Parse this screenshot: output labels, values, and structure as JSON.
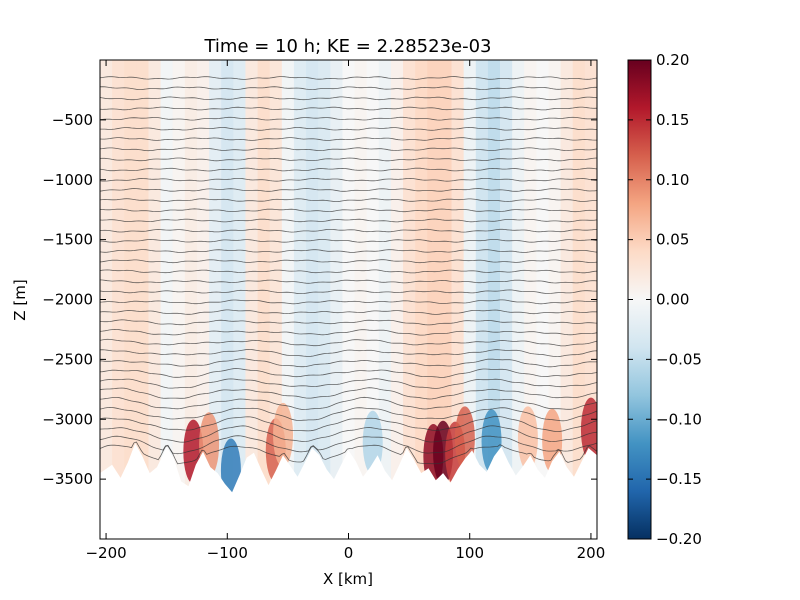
{
  "chart_data": {
    "type": "heatmap",
    "title": "Time = 10 h; KE = 2.28523e-03",
    "xlabel": "X [km]",
    "ylabel": "Z [m]",
    "xlim": [
      -205,
      205
    ],
    "ylim": [
      -4000,
      0
    ],
    "x_ticks": [
      {
        "value": -200,
        "label": "−200"
      },
      {
        "value": -100,
        "label": "−100"
      },
      {
        "value": 0,
        "label": "0"
      },
      {
        "value": 100,
        "label": "100"
      },
      {
        "value": 200,
        "label": "200"
      }
    ],
    "y_ticks": [
      {
        "value": -500,
        "label": "−500"
      },
      {
        "value": -1000,
        "label": "−1000"
      },
      {
        "value": -1500,
        "label": "−1500"
      },
      {
        "value": -2000,
        "label": "−2000"
      },
      {
        "value": -2500,
        "label": "−2500"
      },
      {
        "value": -3000,
        "label": "−3000"
      },
      {
        "value": -3500,
        "label": "−3500"
      }
    ],
    "colorbar": {
      "colormap": "RdBu_r",
      "vmin": -0.2,
      "vmax": 0.2,
      "ticks": [
        {
          "value": 0.2,
          "label": "0.20"
        },
        {
          "value": 0.15,
          "label": "0.15"
        },
        {
          "value": 0.1,
          "label": "0.10"
        },
        {
          "value": 0.05,
          "label": "0.05"
        },
        {
          "value": 0.0,
          "label": "0.00"
        },
        {
          "value": -0.05,
          "label": "−0.05"
        },
        {
          "value": -0.1,
          "label": "−0.10"
        },
        {
          "value": -0.15,
          "label": "−0.15"
        },
        {
          "value": -0.2,
          "label": "−0.20"
        }
      ],
      "colors": [
        "#053061",
        "#2166ac",
        "#4393c3",
        "#92c5de",
        "#d1e5f0",
        "#f7f7f7",
        "#fddbc7",
        "#f4a582",
        "#d6604d",
        "#b2182b",
        "#67001f"
      ]
    },
    "field_columns": [
      {
        "x": -200,
        "value": 0.02
      },
      {
        "x": -190,
        "value": 0.03
      },
      {
        "x": -180,
        "value": 0.035
      },
      {
        "x": -170,
        "value": 0.035
      },
      {
        "x": -160,
        "value": 0.02
      },
      {
        "x": -150,
        "value": -0.005
      },
      {
        "x": -140,
        "value": 0.005
      },
      {
        "x": -130,
        "value": 0.015
      },
      {
        "x": -120,
        "value": 0.01
      },
      {
        "x": -110,
        "value": -0.02
      },
      {
        "x": -100,
        "value": -0.035
      },
      {
        "x": -90,
        "value": -0.025
      },
      {
        "x": -80,
        "value": 0.02
      },
      {
        "x": -70,
        "value": 0.035
      },
      {
        "x": -60,
        "value": 0.025
      },
      {
        "x": -50,
        "value": -0.005
      },
      {
        "x": -40,
        "value": -0.025
      },
      {
        "x": -30,
        "value": -0.035
      },
      {
        "x": -20,
        "value": -0.03
      },
      {
        "x": -10,
        "value": -0.015
      },
      {
        "x": 0,
        "value": 0.0
      },
      {
        "x": 10,
        "value": 0.005
      },
      {
        "x": 20,
        "value": 0.0
      },
      {
        "x": 30,
        "value": -0.01
      },
      {
        "x": 40,
        "value": 0.01
      },
      {
        "x": 50,
        "value": 0.03
      },
      {
        "x": 60,
        "value": 0.04
      },
      {
        "x": 70,
        "value": 0.045
      },
      {
        "x": 80,
        "value": 0.045
      },
      {
        "x": 90,
        "value": 0.03
      },
      {
        "x": 100,
        "value": -0.01
      },
      {
        "x": 110,
        "value": -0.04
      },
      {
        "x": 120,
        "value": -0.05
      },
      {
        "x": 130,
        "value": -0.035
      },
      {
        "x": 140,
        "value": -0.01
      },
      {
        "x": 150,
        "value": 0.005
      },
      {
        "x": 160,
        "value": 0.0
      },
      {
        "x": 170,
        "value": 0.005
      },
      {
        "x": 180,
        "value": 0.02
      },
      {
        "x": 190,
        "value": 0.035
      },
      {
        "x": 200,
        "value": 0.03
      }
    ],
    "bottom_topography": [
      {
        "x": -205,
        "z": -3450
      },
      {
        "x": -195,
        "z": -3380
      },
      {
        "x": -188,
        "z": -3490
      },
      {
        "x": -182,
        "z": -3360
      },
      {
        "x": -176,
        "z": -3200
      },
      {
        "x": -170,
        "z": -3310
      },
      {
        "x": -164,
        "z": -3450
      },
      {
        "x": -158,
        "z": -3400
      },
      {
        "x": -150,
        "z": -3230
      },
      {
        "x": -144,
        "z": -3330
      },
      {
        "x": -138,
        "z": -3520
      },
      {
        "x": -132,
        "z": -3560
      },
      {
        "x": -126,
        "z": -3380
      },
      {
        "x": -120,
        "z": -3270
      },
      {
        "x": -114,
        "z": -3400
      },
      {
        "x": -108,
        "z": -3450
      },
      {
        "x": -102,
        "z": -3540
      },
      {
        "x": -96,
        "z": -3610
      },
      {
        "x": -90,
        "z": -3470
      },
      {
        "x": -84,
        "z": -3320
      },
      {
        "x": -78,
        "z": -3280
      },
      {
        "x": -72,
        "z": -3420
      },
      {
        "x": -66,
        "z": -3550
      },
      {
        "x": -60,
        "z": -3430
      },
      {
        "x": -54,
        "z": -3300
      },
      {
        "x": -48,
        "z": -3390
      },
      {
        "x": -42,
        "z": -3480
      },
      {
        "x": -36,
        "z": -3360
      },
      {
        "x": -30,
        "z": -3240
      },
      {
        "x": -24,
        "z": -3300
      },
      {
        "x": -18,
        "z": -3420
      },
      {
        "x": -12,
        "z": -3500
      },
      {
        "x": -6,
        "z": -3380
      },
      {
        "x": 0,
        "z": -3260
      },
      {
        "x": 6,
        "z": -3350
      },
      {
        "x": 12,
        "z": -3480
      },
      {
        "x": 18,
        "z": -3400
      },
      {
        "x": 24,
        "z": -3300
      },
      {
        "x": 30,
        "z": -3430
      },
      {
        "x": 36,
        "z": -3510
      },
      {
        "x": 42,
        "z": -3380
      },
      {
        "x": 48,
        "z": -3240
      },
      {
        "x": 54,
        "z": -3340
      },
      {
        "x": 60,
        "z": -3450
      },
      {
        "x": 66,
        "z": -3410
      },
      {
        "x": 72,
        "z": -3510
      },
      {
        "x": 78,
        "z": -3450
      },
      {
        "x": 84,
        "z": -3530
      },
      {
        "x": 90,
        "z": -3420
      },
      {
        "x": 96,
        "z": -3330
      },
      {
        "x": 102,
        "z": -3260
      },
      {
        "x": 108,
        "z": -3380
      },
      {
        "x": 114,
        "z": -3440
      },
      {
        "x": 120,
        "z": -3310
      },
      {
        "x": 126,
        "z": -3230
      },
      {
        "x": 132,
        "z": -3360
      },
      {
        "x": 138,
        "z": -3470
      },
      {
        "x": 144,
        "z": -3390
      },
      {
        "x": 150,
        "z": -3300
      },
      {
        "x": 156,
        "z": -3420
      },
      {
        "x": 162,
        "z": -3490
      },
      {
        "x": 168,
        "z": -3350
      },
      {
        "x": 174,
        "z": -3270
      },
      {
        "x": 180,
        "z": -3400
      },
      {
        "x": 186,
        "z": -3480
      },
      {
        "x": 192,
        "z": -3360
      },
      {
        "x": 198,
        "z": -3240
      },
      {
        "x": 205,
        "z": -3300
      }
    ],
    "bottom_hotspots": [
      {
        "x": -128,
        "value": 0.16
      },
      {
        "x": -115,
        "value": 0.09
      },
      {
        "x": -97,
        "value": -0.14
      },
      {
        "x": -60,
        "value": 0.12
      },
      {
        "x": -54,
        "value": 0.07
      },
      {
        "x": 20,
        "value": -0.06
      },
      {
        "x": 70,
        "value": 0.18
      },
      {
        "x": 78,
        "value": 0.2
      },
      {
        "x": 88,
        "value": 0.14
      },
      {
        "x": 96,
        "value": 0.12
      },
      {
        "x": 118,
        "value": -0.12
      },
      {
        "x": 148,
        "value": 0.06
      },
      {
        "x": 168,
        "value": 0.08
      },
      {
        "x": 200,
        "value": 0.15
      }
    ],
    "contours": {
      "count": 38,
      "z_start": -150,
      "z_step": -85,
      "color": "#333333"
    },
    "grid": false
  }
}
